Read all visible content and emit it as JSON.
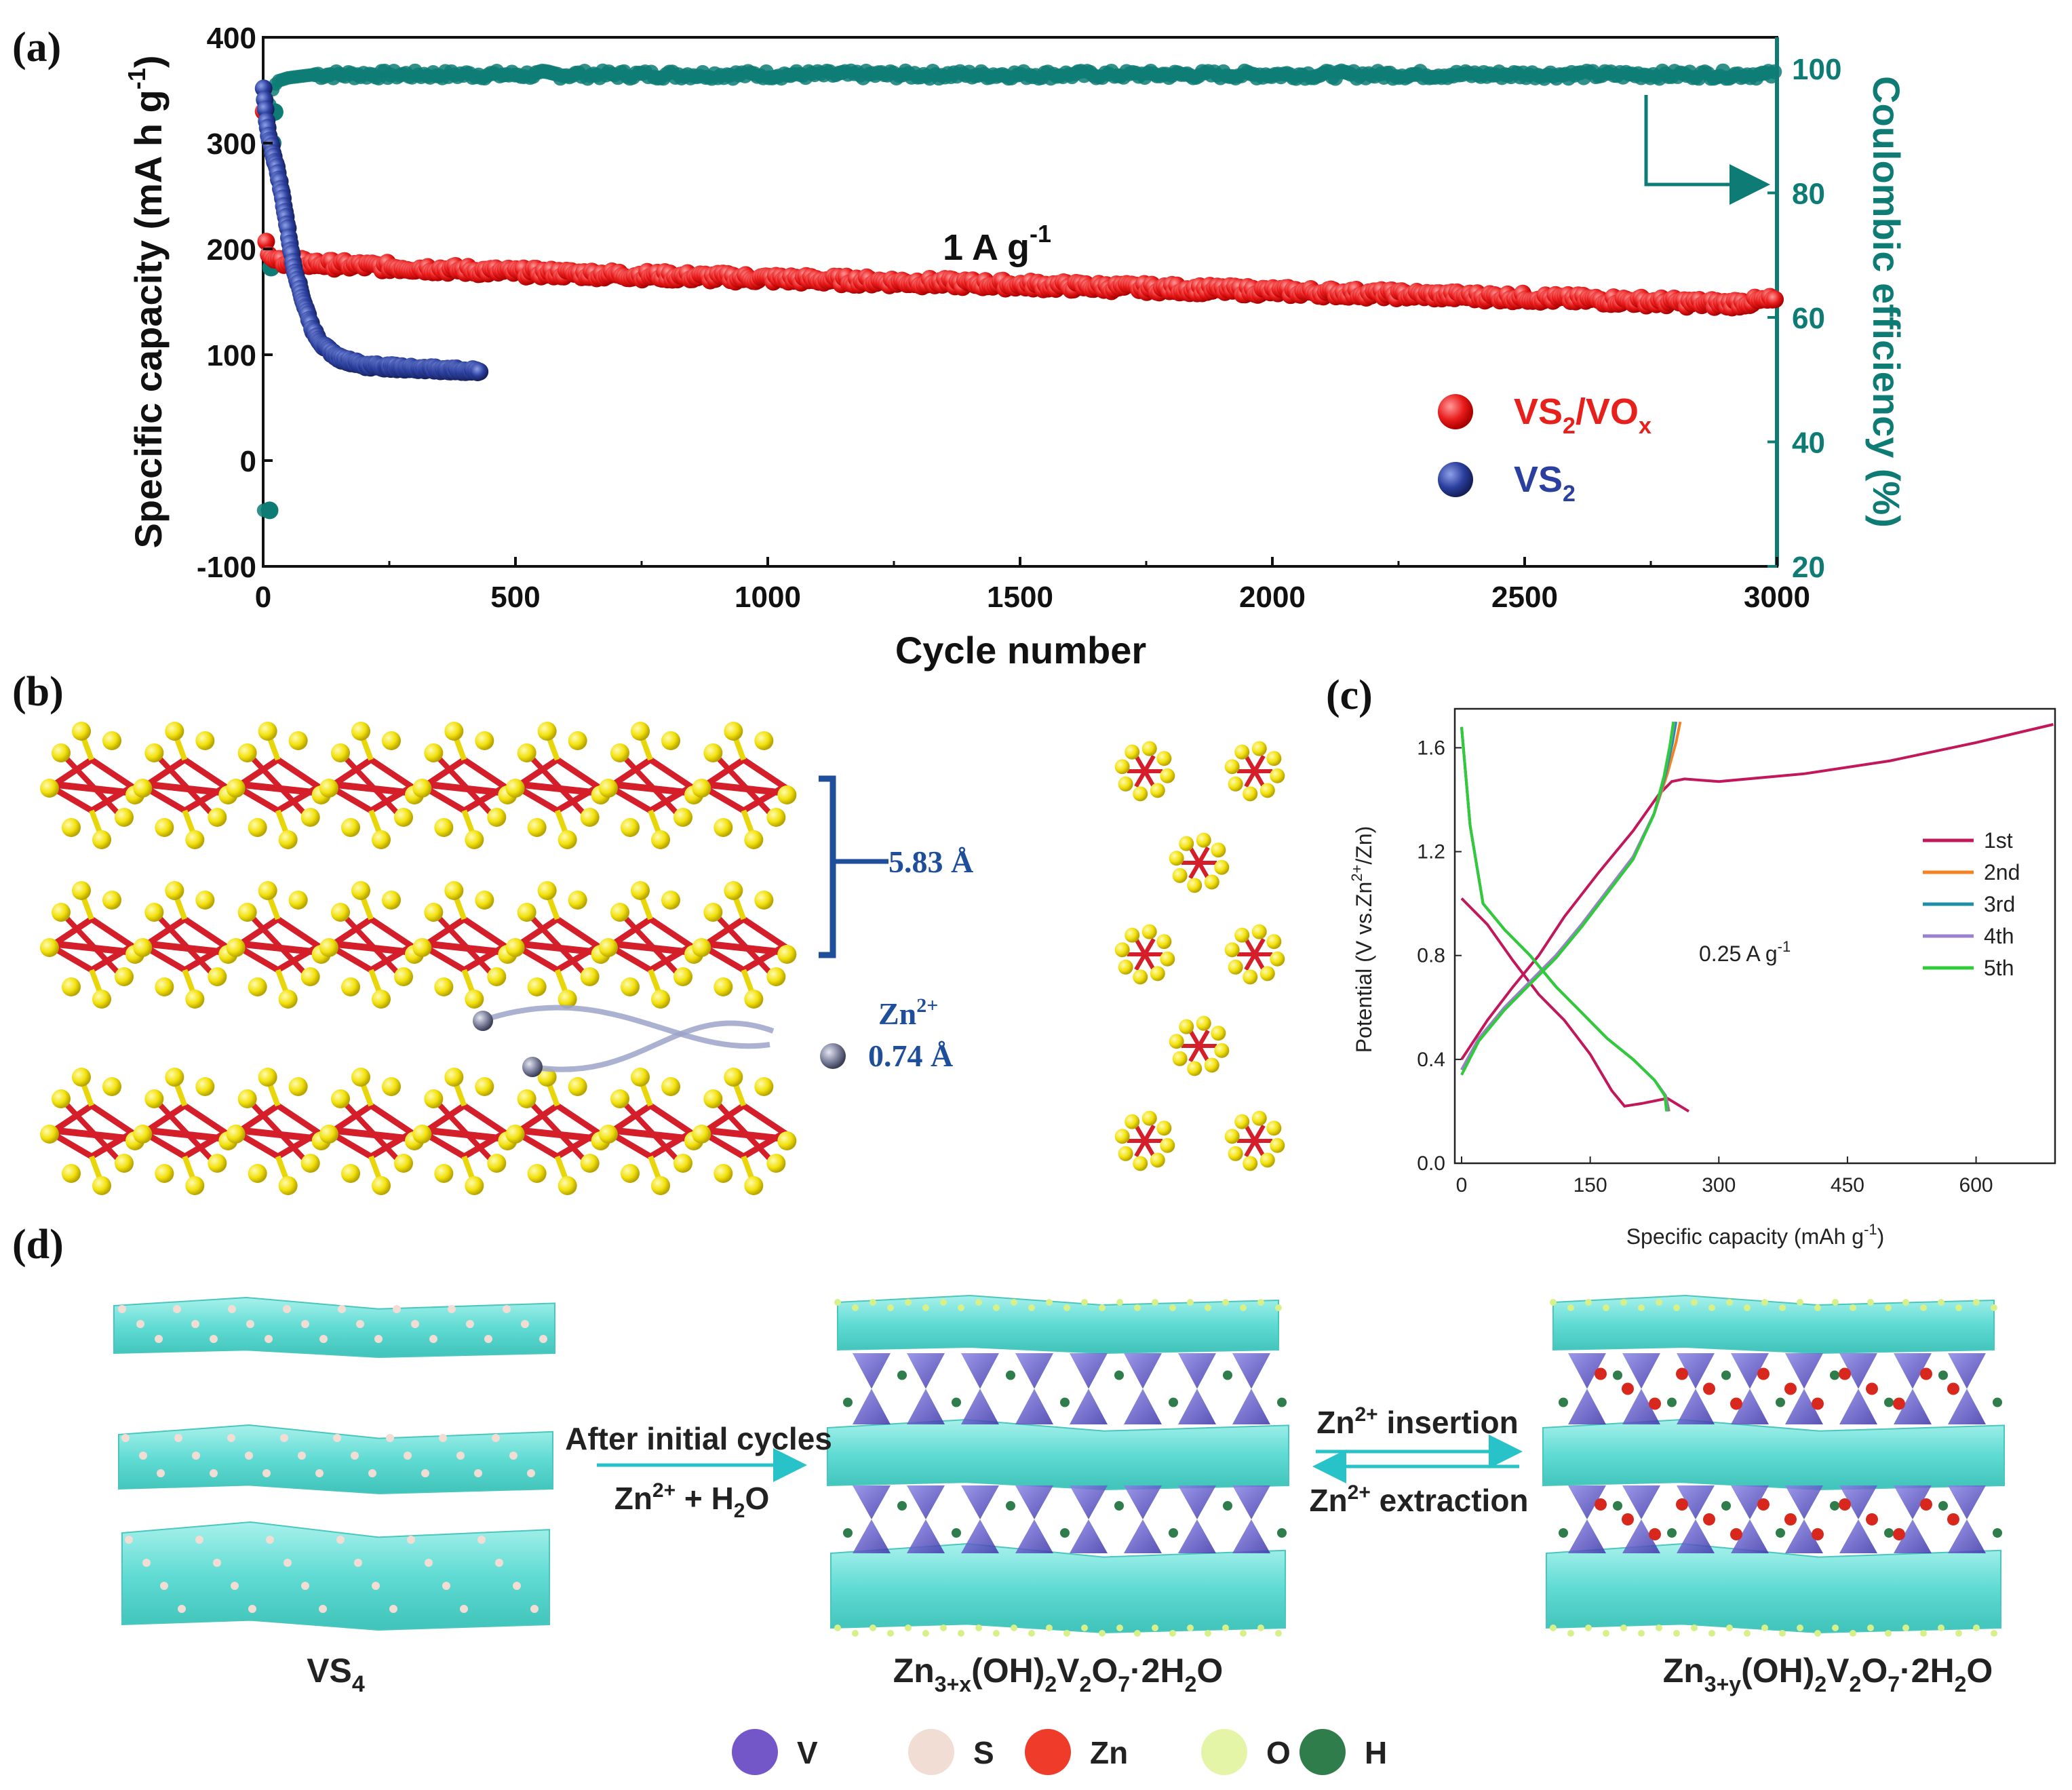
{
  "panel_labels": {
    "a": "(a)",
    "b": "(b)",
    "c": "(c)",
    "d": "(d)"
  },
  "chart_data": [
    {
      "id": "a",
      "type": "scatter",
      "title": "",
      "annotation": "1 A g",
      "annotation_sup": "-1",
      "xlabel": "Cycle number",
      "ylabel": "Specific capacity (mA h g",
      "ylabel_sup": "-1",
      "ylabel_end": ")",
      "y2label": "Coulombic efficiency (%)",
      "xlim": [
        0,
        3000
      ],
      "ylim": [
        -100,
        400
      ],
      "y2lim": [
        20,
        105
      ],
      "xticks": [
        0,
        500,
        1000,
        1500,
        2000,
        2500,
        3000
      ],
      "yticks": [
        400,
        300,
        200,
        100,
        0,
        -100
      ],
      "y2ticks": [
        100,
        80,
        60,
        40,
        20
      ],
      "series": [
        {
          "name": "VS2/VOx",
          "label_main": "VS",
          "label_sub1": "2",
          "label_mid": "/VO",
          "label_sub2": "x",
          "color": "#ee1c1c",
          "x": [
            1,
            3,
            5,
            10,
            20,
            50,
            100,
            300,
            500,
            1000,
            1500,
            2000,
            2500,
            2900,
            3000
          ],
          "y": [
            330,
            300,
            210,
            195,
            190,
            188,
            186,
            182,
            178,
            172,
            166,
            160,
            154,
            148,
            152
          ]
        },
        {
          "name": "VS2",
          "label_main": "VS",
          "label_sub1": "2",
          "color": "#2b3f9e",
          "x": [
            1,
            5,
            10,
            20,
            30,
            40,
            50,
            60,
            80,
            100,
            120,
            150,
            200,
            300,
            400,
            430
          ],
          "y": [
            350,
            330,
            310,
            290,
            270,
            245,
            215,
            185,
            150,
            122,
            108,
            97,
            90,
            87,
            85,
            84
          ]
        },
        {
          "name": "Coulombic efficiency",
          "color": "#0e7c75",
          "x": [
            1,
            3,
            5,
            10,
            20,
            30,
            50,
            100,
            500,
            1000,
            1500,
            2000,
            2500,
            3000
          ],
          "y": [
            29,
            68,
            88,
            93,
            97,
            98,
            98.5,
            99,
            99,
            99,
            99,
            99,
            99,
            99
          ]
        }
      ]
    },
    {
      "id": "c",
      "type": "line",
      "annotation": "0.25 A g",
      "annotation_sup": "-1",
      "xlabel": "Specific capacity (mAh g",
      "xlabel_sup": "-1",
      "xlabel_end": ")",
      "ylabel": "Potential (V vs.Zn",
      "ylabel_sup": "2+",
      "ylabel_end": "/Zn)",
      "xlim": [
        0,
        700
      ],
      "ylim": [
        0,
        1.75
      ],
      "xticks": [
        0,
        150,
        300,
        450,
        600
      ],
      "yticks": [
        "0.0",
        "0.4",
        "0.8",
        "1.2",
        "1.6"
      ],
      "series": [
        {
          "name": "1st",
          "color": "#c2185b",
          "discharge": {
            "x": [
              0,
              30,
              60,
              90,
              120,
              150,
              175,
              190,
              210,
              240,
              265
            ],
            "y": [
              1.02,
              0.92,
              0.78,
              0.65,
              0.55,
              0.42,
              0.28,
              0.22,
              0.23,
              0.25,
              0.2
            ]
          },
          "charge": {
            "x": [
              0,
              30,
              60,
              90,
              120,
              160,
              200,
              230,
              245,
              260,
              300,
              400,
              500,
              600,
              690
            ],
            "y": [
              0.4,
              0.55,
              0.68,
              0.8,
              0.95,
              1.12,
              1.28,
              1.42,
              1.47,
              1.48,
              1.47,
              1.5,
              1.55,
              1.62,
              1.69
            ]
          }
        },
        {
          "name": "2nd",
          "color": "#f58220",
          "discharge": {
            "x": [
              0,
              10,
              25,
              50,
              80,
              110,
              140,
              170,
              200,
              225,
              238,
              242
            ],
            "y": [
              1.68,
              1.3,
              1.0,
              0.9,
              0.8,
              0.68,
              0.58,
              0.48,
              0.4,
              0.32,
              0.26,
              0.2
            ]
          },
          "charge": {
            "x": [
              0,
              20,
              50,
              80,
              110,
              140,
              170,
              200,
              225,
              240,
              250,
              255
            ],
            "y": [
              0.36,
              0.48,
              0.6,
              0.7,
              0.8,
              0.92,
              1.05,
              1.18,
              1.35,
              1.5,
              1.62,
              1.7
            ]
          }
        },
        {
          "name": "3rd",
          "color": "#1e8fa6",
          "discharge": {
            "x": [
              0,
              10,
              25,
              50,
              80,
              110,
              140,
              170,
              200,
              225,
              238,
              241
            ],
            "y": [
              1.68,
              1.3,
              1.0,
              0.9,
              0.8,
              0.68,
              0.58,
              0.48,
              0.4,
              0.32,
              0.26,
              0.2
            ]
          },
          "charge": {
            "x": [
              0,
              20,
              50,
              80,
              110,
              140,
              170,
              200,
              225,
              238,
              246,
              250
            ],
            "y": [
              0.36,
              0.48,
              0.6,
              0.7,
              0.8,
              0.92,
              1.05,
              1.18,
              1.35,
              1.5,
              1.62,
              1.7
            ]
          }
        },
        {
          "name": "4th",
          "color": "#9b7fd0",
          "discharge": {
            "x": [
              0,
              10,
              25,
              50,
              80,
              110,
              140,
              170,
              200,
              225,
              238,
              240
            ],
            "y": [
              1.68,
              1.3,
              1.0,
              0.9,
              0.8,
              0.68,
              0.58,
              0.48,
              0.4,
              0.32,
              0.26,
              0.2
            ]
          },
          "charge": {
            "x": [
              0,
              20,
              50,
              80,
              110,
              140,
              170,
              200,
              225,
              237,
              244,
              248
            ],
            "y": [
              0.36,
              0.48,
              0.6,
              0.7,
              0.8,
              0.92,
              1.05,
              1.18,
              1.35,
              1.5,
              1.62,
              1.7
            ]
          }
        },
        {
          "name": "5th",
          "color": "#2fcc3a",
          "discharge": {
            "x": [
              0,
              10,
              25,
              50,
              80,
              110,
              140,
              170,
              200,
              225,
              237,
              239
            ],
            "y": [
              1.68,
              1.3,
              1.0,
              0.9,
              0.8,
              0.68,
              0.58,
              0.48,
              0.4,
              0.32,
              0.26,
              0.2
            ]
          },
          "charge": {
            "x": [
              0,
              20,
              50,
              80,
              110,
              140,
              170,
              200,
              224,
              236,
              243,
              247
            ],
            "y": [
              0.34,
              0.47,
              0.59,
              0.69,
              0.79,
              0.91,
              1.04,
              1.17,
              1.34,
              1.49,
              1.61,
              1.7
            ]
          }
        }
      ]
    }
  ],
  "panel_b": {
    "spacing_value": "5.83 Å",
    "ion_label": "Zn",
    "ion_sup": "2+",
    "ion_size": "0.74 Å"
  },
  "panel_d": {
    "step1_top": "After initial cycles",
    "step1_bottom": "Zn",
    "step1_bottom_sup": "2+",
    "step1_bottom_end": " + H",
    "step1_bottom_sub": "2",
    "step1_bottom_tail": "O",
    "step2_top": "Zn",
    "step2_top_sup": "2+",
    "step2_top_end": " insertion",
    "step2_bottom": "Zn",
    "step2_bottom_sup": "2+",
    "step2_bottom_end": " extraction",
    "struct1": {
      "a": "VS",
      "a_sub": "4"
    },
    "struct2": {
      "p1": "Zn",
      "p1_sub": "3+x",
      "p2": "(OH)",
      "p2_sub": "2",
      "p3": "V",
      "p3_sub": "2",
      "p4": "O",
      "p4_sub": "7",
      "p5": "·2H",
      "p5_sub": "2",
      "p6": "O"
    },
    "struct3": {
      "p1": "Zn",
      "p1_sub": "3+y",
      "p2": "(OH)",
      "p2_sub": "2",
      "p3": "V",
      "p3_sub": "2",
      "p4": "O",
      "p4_sub": "7",
      "p5": "·2H",
      "p5_sub": "2",
      "p6": "O"
    },
    "legend": [
      {
        "label": "V",
        "color": "#7357c9"
      },
      {
        "label": "S",
        "color": "#f1ddd3"
      },
      {
        "label": "Zn",
        "color": "#ef3b2a"
      },
      {
        "label": "O",
        "color": "#e5f5a8"
      },
      {
        "label": "H",
        "color": "#2e7d4a"
      }
    ]
  }
}
